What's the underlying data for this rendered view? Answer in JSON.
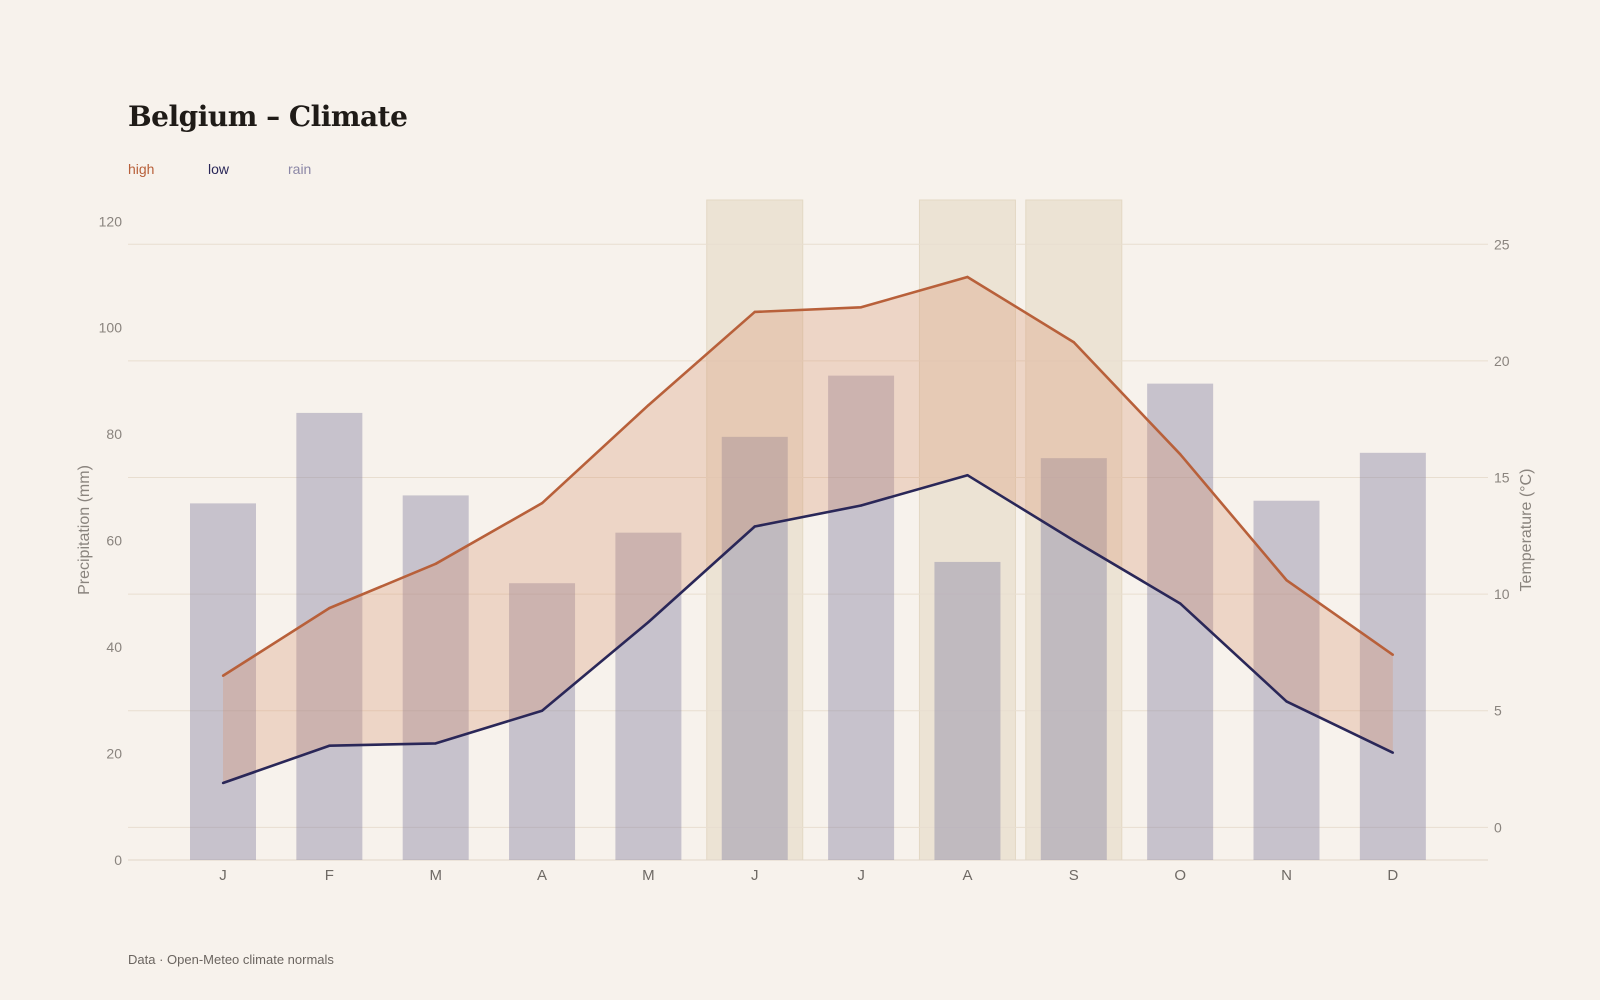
{
  "title": "Belgium – Climate",
  "footer": "Data · Open-Meteo climate normals",
  "legend": [
    {
      "label": "high",
      "color": "#b8603a"
    },
    {
      "label": "low",
      "color": "#2a2758"
    },
    {
      "label": "rain",
      "color": "#8b87a6"
    }
  ],
  "chart_data": {
    "type": "bar+line",
    "title": "Belgium – Climate",
    "categories": [
      "J",
      "F",
      "M",
      "A",
      "M",
      "J",
      "J",
      "A",
      "S",
      "O",
      "N",
      "D"
    ],
    "rain": {
      "name": "rain",
      "unit": "mm",
      "color": "#8b87a6",
      "values": [
        67,
        84,
        68.5,
        52,
        61.5,
        79.5,
        91,
        56,
        75.5,
        89.5,
        67.5,
        76.5
      ]
    },
    "high": {
      "name": "high",
      "unit": "°C",
      "color": "#b8603a",
      "values": [
        6.5,
        9.4,
        11.3,
        13.9,
        18.1,
        22.1,
        22.3,
        23.6,
        20.8,
        16.0,
        10.6,
        7.4
      ]
    },
    "low": {
      "name": "low",
      "unit": "°C",
      "color": "#2a2758",
      "values": [
        1.9,
        3.5,
        3.6,
        5.0,
        8.8,
        12.9,
        13.8,
        15.1,
        12.3,
        9.6,
        5.4,
        3.2
      ]
    },
    "highlighted_months": [
      5,
      7,
      8
    ],
    "y_left": {
      "label": "Precipitation (mm)",
      "ticks": [
        0,
        20,
        40,
        60,
        80,
        100,
        120
      ],
      "range": [
        0,
        124
      ]
    },
    "y_right": {
      "label": "Temperature (°C)",
      "ticks": [
        0,
        5,
        10,
        15,
        20,
        25
      ],
      "range": [
        -1.4,
        26.9
      ]
    },
    "grid": true
  }
}
